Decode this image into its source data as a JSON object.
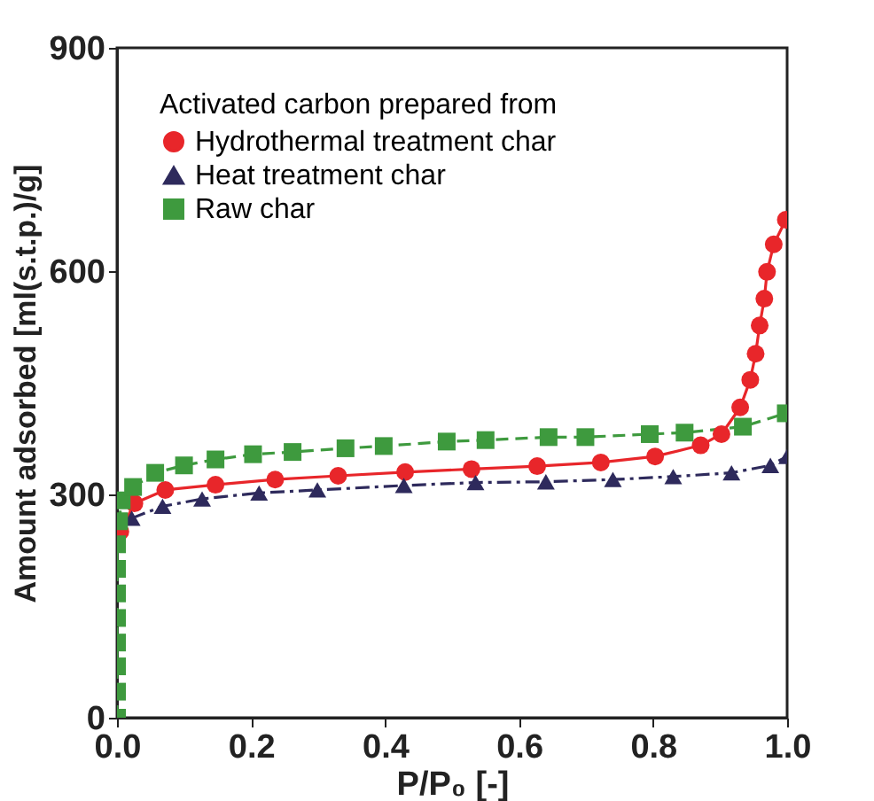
{
  "chart_data": {
    "type": "line",
    "xlabel": "P/P₀ [-]",
    "ylabel": "Amount adsorbed [ml(s.t.p.)/g]",
    "legend_title": "Activated carbon prepared from",
    "legend": "top left",
    "grid": false,
    "xlim": [
      0,
      1
    ],
    "xticks": [
      {
        "value": 0,
        "label": "0.0"
      },
      0.2,
      0.4,
      0.6,
      0.8,
      {
        "value": 1,
        "label": "1.0"
      }
    ],
    "ylim": [
      0,
      900
    ],
    "yticks": [
      0,
      300,
      600,
      900
    ],
    "series": [
      {
        "name": "Hydrothermal treatment char",
        "color": "#e8262a",
        "marker": "circle",
        "line_style": "solid",
        "x": [
          0.005,
          0.026,
          0.072,
          0.147,
          0.236,
          0.33,
          0.43,
          0.529,
          0.627,
          0.722,
          0.803,
          0.871,
          0.902,
          0.93,
          0.945,
          0.953,
          0.959,
          0.966,
          0.97,
          0.98,
          0.998
        ],
        "values": [
          250,
          288,
          306,
          313,
          320,
          325,
          330,
          334,
          338,
          343,
          351,
          366,
          381,
          417,
          454,
          489,
          527,
          563,
          599,
          636,
          669
        ]
      },
      {
        "name": "Heat treatment char",
        "color": "#2e2a5c",
        "marker": "triangle",
        "line_style": "dashdot",
        "x": [
          0.022,
          0.068,
          0.127,
          0.212,
          0.299,
          0.428,
          0.535,
          0.64,
          0.74,
          0.83,
          0.917,
          0.975,
          1.0
        ],
        "values": [
          268,
          284,
          294,
          302,
          306,
          312,
          316,
          317,
          320,
          324,
          329,
          339,
          351
        ]
      },
      {
        "name": "Raw char",
        "color": "#3e9a3e",
        "marker": "square",
        "line_style": "dashed",
        "x": [
          0,
          0,
          0,
          0,
          0,
          0,
          0,
          0,
          0.003,
          0.007,
          0.024,
          0.057,
          0.1,
          0.147,
          0.203,
          0.262,
          0.341,
          0.398,
          0.492,
          0.55,
          0.644,
          0.699,
          0.795,
          0.847,
          0.934,
          0.998
        ],
        "values": [
          0,
          35,
          69,
          101,
          134,
          167,
          200,
          233,
          264,
          292,
          310,
          329,
          339,
          347,
          354,
          357,
          362,
          365,
          371,
          373,
          377,
          377,
          381,
          383,
          391,
          409
        ]
      }
    ]
  }
}
